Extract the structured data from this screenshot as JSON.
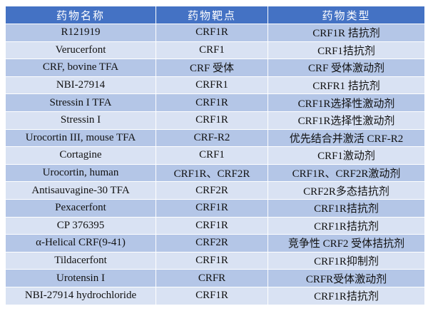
{
  "colors": {
    "header": "#4472c4",
    "row_dark": "#b4c6e7",
    "row_light": "#d9e2f3"
  },
  "headers": [
    "药物名称",
    "药物靶点",
    "药物类型"
  ],
  "rows": [
    [
      "R121919",
      "CRF1R",
      "CRF1R 拮抗剂"
    ],
    [
      "Verucerfont",
      "CRF1",
      "CRF1拮抗剂"
    ],
    [
      "CRF, bovine TFA",
      "CRF 受体",
      "CRF 受体激动剂"
    ],
    [
      "NBI-27914",
      "CRFR1",
      "CRFR1 拮抗剂"
    ],
    [
      "Stressin I TFA",
      "CRF1R",
      "CRF1R选择性激动剂"
    ],
    [
      "Stressin I",
      "CRF1R",
      "CRF1R选择性激动剂"
    ],
    [
      "Urocortin III, mouse TFA",
      "CRF-R2",
      "优先结合并激活 CRF-R2"
    ],
    [
      "Cortagine",
      "CRF1",
      "CRF1激动剂"
    ],
    [
      "Urocortin, human",
      "CRF1R、CRF2R",
      "CRF1R、CRF2R激动剂"
    ],
    [
      "Antisauvagine-30 TFA",
      "CRF2R",
      "CRF2R多态拮抗剂"
    ],
    [
      "Pexacerfont",
      "CRF1R",
      "CRF1R拮抗剂"
    ],
    [
      "CP 376395",
      "CRF1R",
      "CRF1R拮抗剂"
    ],
    [
      "α-Helical CRF(9-41)",
      "CRF2R",
      "竞争性 CRF2 受体拮抗剂"
    ],
    [
      "Tildacerfont",
      "CRF1R",
      "CRF1R抑制剂"
    ],
    [
      "Urotensin I",
      "CRFR",
      "CRFR受体激动剂"
    ],
    [
      "NBI-27914 hydrochloride",
      "CRF1R",
      "CRF1R拮抗剂"
    ]
  ]
}
